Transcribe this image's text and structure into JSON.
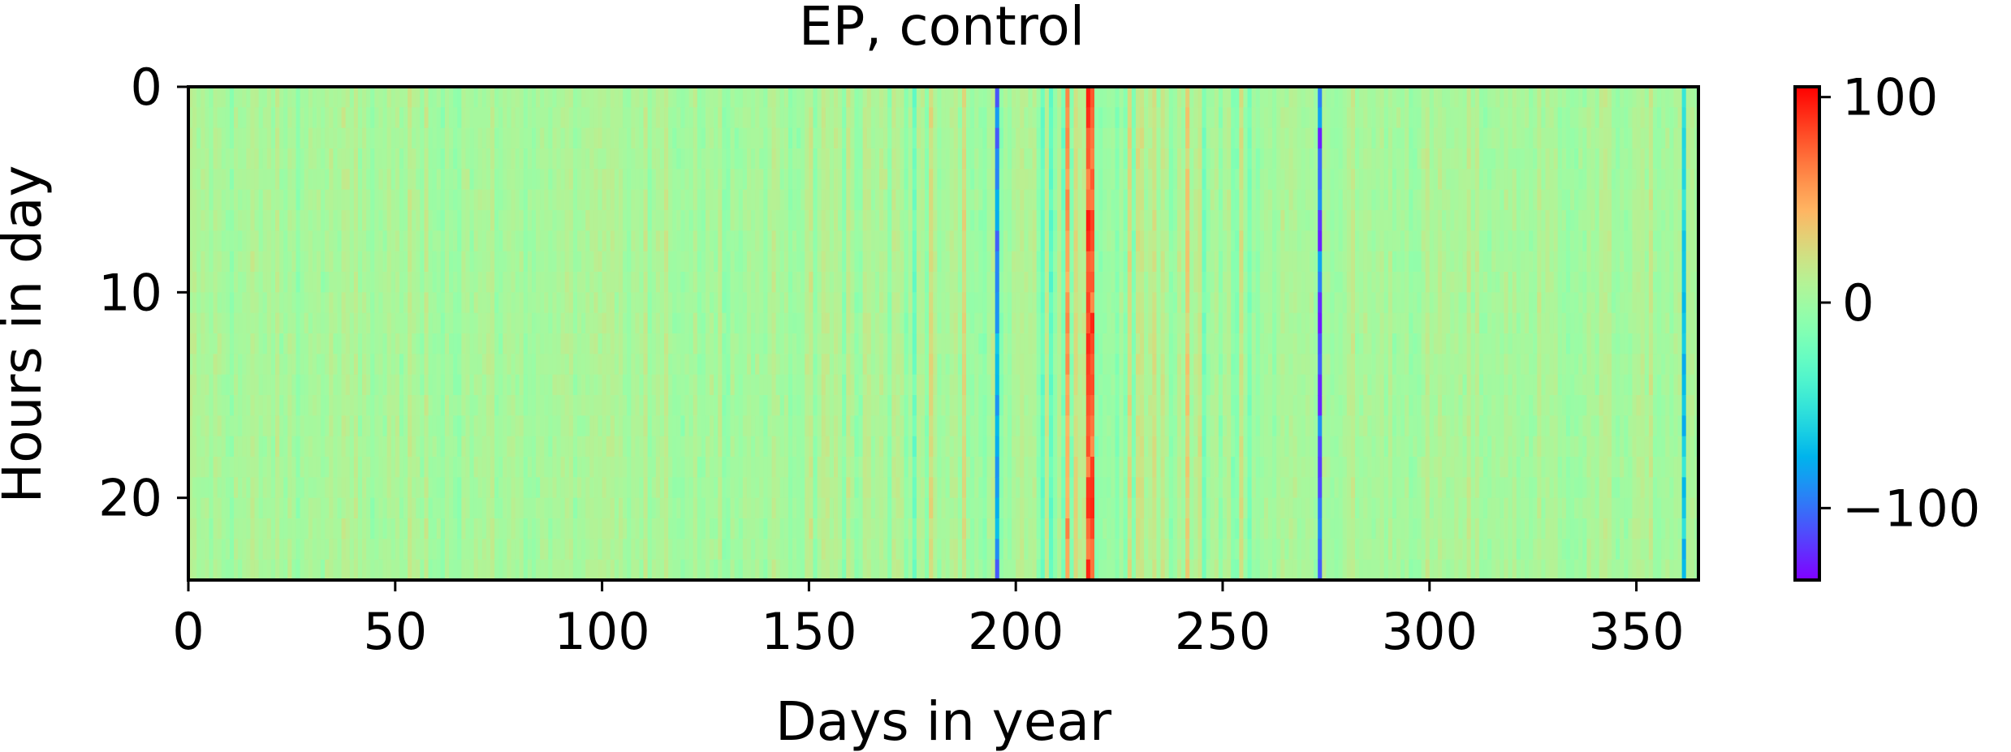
{
  "chart_data": {
    "type": "heatmap",
    "title": "EP, control",
    "xlabel": "Days in year",
    "ylabel": "Hours in day",
    "xlim": [
      0,
      365
    ],
    "ylim": [
      24,
      0
    ],
    "n_days": 365,
    "n_hours": 24,
    "xticks": [
      0,
      50,
      100,
      150,
      200,
      250,
      300,
      350
    ],
    "yticks": [
      0,
      10,
      20
    ],
    "colorbar": {
      "colormap": "rainbow",
      "vmin": -135,
      "vmax": 105,
      "ticks": [
        -100,
        0,
        100
      ],
      "tick_labels": [
        "−100",
        "0",
        "100"
      ]
    },
    "grid": false,
    "notable_day_anomalies": [
      {
        "day": 217,
        "value": 100
      },
      {
        "day": 218,
        "value": 95
      },
      {
        "day": 212,
        "value": 70
      },
      {
        "day": 273,
        "value": -130
      },
      {
        "day": 195,
        "value": -110
      },
      {
        "day": 361,
        "value": -80
      }
    ]
  }
}
